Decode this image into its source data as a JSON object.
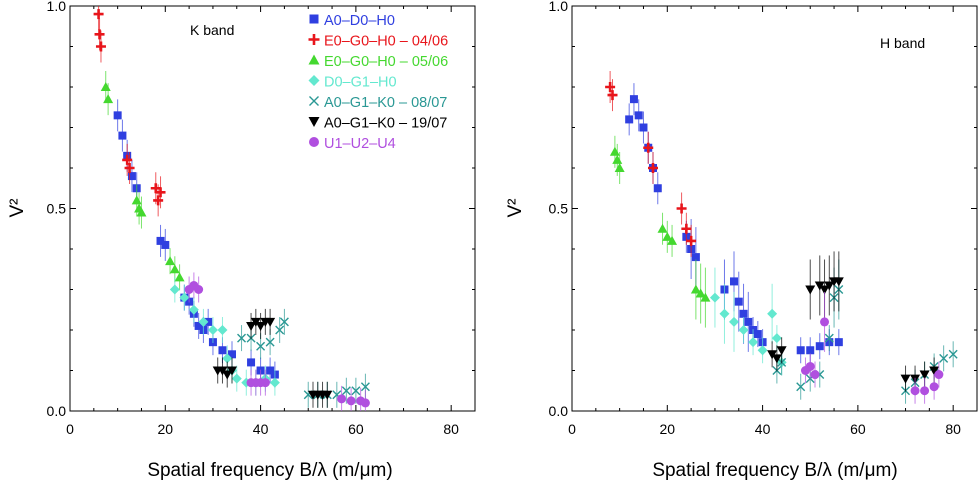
{
  "chart_data": [
    {
      "type": "scatter",
      "title": "",
      "annotation": "K band",
      "xlabel": "Spatial frequency B/λ (m/μm)",
      "ylabel": "V²",
      "xlim": [
        0,
        85
      ],
      "ylim": [
        0,
        1.0
      ],
      "x_ticks": [
        "0",
        "20",
        "40",
        "60",
        "80"
      ],
      "y_ticks": [
        "0.0",
        "0.5",
        "1.0"
      ],
      "legend_placement": "top-right",
      "series": [
        {
          "name": "A0–D0–H0",
          "marker": "square",
          "color": "#2f3fe0",
          "points": [
            [
              10,
              0.73
            ],
            [
              11,
              0.68
            ],
            [
              12,
              0.63
            ],
            [
              13,
              0.58
            ],
            [
              14,
              0.55
            ],
            [
              19,
              0.42
            ],
            [
              20,
              0.41
            ],
            [
              24,
              0.28
            ],
            [
              25,
              0.27
            ],
            [
              26,
              0.24
            ],
            [
              27,
              0.21
            ],
            [
              28,
              0.2
            ],
            [
              29,
              0.22
            ],
            [
              30,
              0.17
            ],
            [
              32,
              0.15
            ],
            [
              34,
              0.14
            ],
            [
              38,
              0.12
            ],
            [
              40,
              0.1
            ],
            [
              42,
              0.1
            ],
            [
              43,
              0.09
            ]
          ]
        },
        {
          "name": "E0–G0–H0 – 04/06",
          "marker": "plus",
          "color": "#e8151b",
          "points": [
            [
              6,
              0.98
            ],
            [
              6.2,
              0.93
            ],
            [
              6.5,
              0.9
            ],
            [
              12,
              0.62
            ],
            [
              12.5,
              0.6
            ],
            [
              18,
              0.55
            ],
            [
              18.5,
              0.52
            ],
            [
              19,
              0.54
            ]
          ]
        },
        {
          "name": "E0–G0–H0 – 05/06",
          "marker": "triangle-up",
          "color": "#44d82f",
          "points": [
            [
              7.5,
              0.8
            ],
            [
              8,
              0.77
            ],
            [
              14,
              0.52
            ],
            [
              14.5,
              0.5
            ],
            [
              15,
              0.49
            ],
            [
              21,
              0.37
            ],
            [
              22,
              0.35
            ],
            [
              23,
              0.33
            ]
          ]
        },
        {
          "name": "D0–G1–H0",
          "marker": "diamond",
          "color": "#63e8cf",
          "points": [
            [
              22,
              0.3
            ],
            [
              24,
              0.28
            ],
            [
              26,
              0.25
            ],
            [
              28,
              0.22
            ],
            [
              30,
              0.2
            ],
            [
              32,
              0.2
            ],
            [
              33,
              0.13
            ],
            [
              34,
              0.1
            ],
            [
              35,
              0.08
            ],
            [
              37,
              0.07
            ],
            [
              39,
              0.07
            ],
            [
              41,
              0.08
            ],
            [
              43,
              0.07
            ]
          ]
        },
        {
          "name": "A0–G1–K0 – 08/07",
          "marker": "x",
          "color": "#2a9894",
          "points": [
            [
              36,
              0.18
            ],
            [
              38,
              0.18
            ],
            [
              40,
              0.16
            ],
            [
              42,
              0.17
            ],
            [
              44,
              0.2
            ],
            [
              45,
              0.22
            ],
            [
              50,
              0.04
            ],
            [
              52,
              0.04
            ],
            [
              54,
              0.04
            ],
            [
              56,
              0.04
            ],
            [
              58,
              0.05
            ],
            [
              60,
              0.05
            ],
            [
              62,
              0.06
            ]
          ]
        },
        {
          "name": "A0–G1–K0 – 19/07",
          "marker": "triangle-down",
          "color": "#000000",
          "points": [
            [
              31,
              0.1
            ],
            [
              32,
              0.1
            ],
            [
              33,
              0.09
            ],
            [
              34,
              0.1
            ],
            [
              38,
              0.21
            ],
            [
              39,
              0.22
            ],
            [
              40,
              0.21
            ],
            [
              41,
              0.22
            ],
            [
              42,
              0.22
            ],
            [
              51,
              0.04
            ],
            [
              52,
              0.04
            ],
            [
              53,
              0.04
            ],
            [
              54,
              0.04
            ]
          ]
        },
        {
          "name": "U1–U2–U4",
          "marker": "circle",
          "color": "#b04fdf",
          "points": [
            [
              25,
              0.3
            ],
            [
              26,
              0.31
            ],
            [
              27,
              0.3
            ],
            [
              38,
              0.07
            ],
            [
              39,
              0.07
            ],
            [
              40,
              0.07
            ],
            [
              41,
              0.07
            ],
            [
              57,
              0.03
            ],
            [
              59,
              0.025
            ],
            [
              61,
              0.025
            ],
            [
              62,
              0.02
            ]
          ]
        }
      ]
    },
    {
      "type": "scatter",
      "title": "",
      "annotation": "H band",
      "xlabel": "Spatial frequency B/λ (m/μm)",
      "ylabel": "V²",
      "xlim": [
        0,
        85
      ],
      "ylim": [
        0,
        1.0
      ],
      "x_ticks": [
        "0",
        "20",
        "40",
        "60",
        "80"
      ],
      "y_ticks": [
        "0.0",
        "0.5",
        "1.0"
      ],
      "series": [
        {
          "name": "A0–D0–H0",
          "marker": "square",
          "color": "#2f3fe0",
          "points": [
            [
              12,
              0.72
            ],
            [
              13,
              0.77
            ],
            [
              14,
              0.73
            ],
            [
              15,
              0.7
            ],
            [
              16,
              0.65
            ],
            [
              17,
              0.6
            ],
            [
              18,
              0.55
            ],
            [
              24,
              0.43
            ],
            [
              25,
              0.4
            ],
            [
              26,
              0.38
            ],
            [
              32,
              0.3
            ],
            [
              34,
              0.32
            ],
            [
              35,
              0.27
            ],
            [
              36,
              0.24
            ],
            [
              37,
              0.22
            ],
            [
              38,
              0.2
            ],
            [
              39,
              0.19
            ],
            [
              40,
              0.17
            ],
            [
              48,
              0.15
            ],
            [
              50,
              0.15
            ],
            [
              52,
              0.16
            ],
            [
              54,
              0.17
            ],
            [
              56,
              0.17
            ]
          ]
        },
        {
          "name": "E0–G0–H0 – 04/06",
          "marker": "plus",
          "color": "#e8151b",
          "points": [
            [
              8,
              0.8
            ],
            [
              8.5,
              0.78
            ],
            [
              16,
              0.65
            ],
            [
              17,
              0.6
            ],
            [
              23,
              0.5
            ],
            [
              24,
              0.45
            ],
            [
              25,
              0.42
            ]
          ]
        },
        {
          "name": "E0–G0–H0 – 05/06",
          "marker": "triangle-up",
          "color": "#44d82f",
          "points": [
            [
              9,
              0.64
            ],
            [
              9.5,
              0.62
            ],
            [
              10,
              0.6
            ],
            [
              19,
              0.45
            ],
            [
              20,
              0.43
            ],
            [
              21,
              0.42
            ],
            [
              26,
              0.3
            ],
            [
              27,
              0.29
            ],
            [
              28,
              0.28
            ]
          ]
        },
        {
          "name": "D0–G1–H0",
          "marker": "diamond",
          "color": "#63e8cf",
          "points": [
            [
              30,
              0.28
            ],
            [
              32,
              0.24
            ],
            [
              34,
              0.22
            ],
            [
              36,
              0.2
            ],
            [
              38,
              0.17
            ],
            [
              40,
              0.15
            ],
            [
              42,
              0.24
            ],
            [
              43,
              0.18
            ],
            [
              44,
              0.12
            ]
          ]
        },
        {
          "name": "A0–G1–K0 – 08/07",
          "marker": "x",
          "color": "#2a9894",
          "points": [
            [
              43,
              0.1
            ],
            [
              44,
              0.12
            ],
            [
              48,
              0.06
            ],
            [
              50,
              0.08
            ],
            [
              52,
              0.09
            ],
            [
              54,
              0.18
            ],
            [
              55,
              0.28
            ],
            [
              56,
              0.3
            ],
            [
              70,
              0.05
            ],
            [
              72,
              0.07
            ],
            [
              74,
              0.09
            ],
            [
              76,
              0.11
            ],
            [
              78,
              0.13
            ],
            [
              80,
              0.14
            ]
          ]
        },
        {
          "name": "A0–G1–K0 – 19/07",
          "marker": "triangle-down",
          "color": "#000000",
          "points": [
            [
              42,
              0.14
            ],
            [
              43,
              0.13
            ],
            [
              44,
              0.15
            ],
            [
              50,
              0.3
            ],
            [
              52,
              0.31
            ],
            [
              53,
              0.3
            ],
            [
              54,
              0.31
            ],
            [
              55,
              0.32
            ],
            [
              56,
              0.32
            ],
            [
              70,
              0.08
            ],
            [
              72,
              0.08
            ],
            [
              74,
              0.09
            ],
            [
              76,
              0.1
            ]
          ]
        },
        {
          "name": "U1–U2–U4",
          "marker": "circle",
          "color": "#b04fdf",
          "points": [
            [
              49,
              0.1
            ],
            [
              50,
              0.11
            ],
            [
              51,
              0.09
            ],
            [
              53,
              0.22
            ],
            [
              72,
              0.05
            ],
            [
              74,
              0.05
            ],
            [
              76,
              0.06
            ],
            [
              77,
              0.09
            ]
          ]
        }
      ]
    }
  ]
}
